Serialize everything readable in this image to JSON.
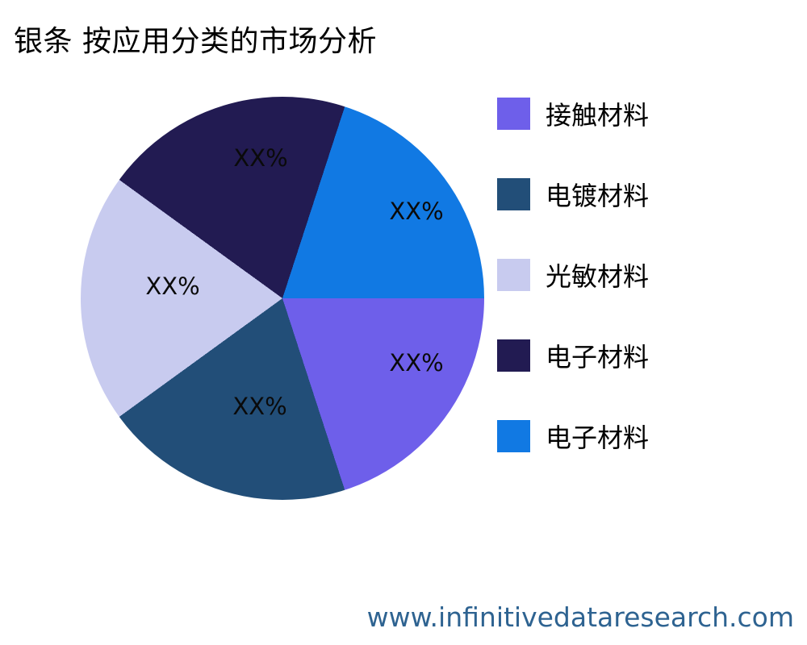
{
  "title": "银条 按应用分类的市场分析",
  "footer": {
    "website": "www.infinitivedataresearch.com"
  },
  "colors": {
    "background": "#FFFFFF",
    "title_text": "#000000",
    "slice_label_text": "#0A0A0A",
    "footer_text": "#2E6391"
  },
  "chart_data": {
    "type": "pie",
    "title": "银条 按应用分类的市场分析",
    "legend_position": "right",
    "direction": "clockwise",
    "start_angle_deg": 0,
    "slices": [
      {
        "label": "接触材料",
        "value_label": "XX%",
        "share_pct": 20,
        "color": "#6E5FEA"
      },
      {
        "label": "电镀材料",
        "value_label": "XX%",
        "share_pct": 20,
        "color": "#224E78"
      },
      {
        "label": "光敏材料",
        "value_label": "XX%",
        "share_pct": 20,
        "color": "#C8CBEF"
      },
      {
        "label": "电子材料",
        "value_label": "XX%",
        "share_pct": 20,
        "color": "#221B52"
      },
      {
        "label": "电子材料",
        "value_label": "XX%",
        "share_pct": 20,
        "color": "#1179E3"
      }
    ]
  }
}
